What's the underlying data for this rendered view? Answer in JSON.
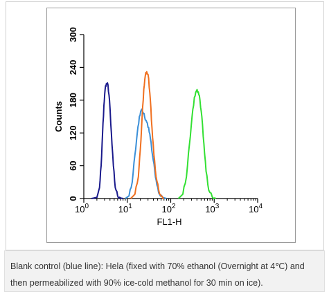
{
  "chart_data": {
    "type": "line",
    "xlabel": "FL1-H",
    "ylabel": "Counts",
    "x_scale": "log",
    "xlim": [
      1,
      10000
    ],
    "ylim": [
      0,
      300
    ],
    "x_ticks": [
      {
        "value": 1,
        "base": "10",
        "exp": "0"
      },
      {
        "value": 10,
        "base": "10",
        "exp": "1"
      },
      {
        "value": 100,
        "base": "10",
        "exp": "2"
      },
      {
        "value": 1000,
        "base": "10",
        "exp": "3"
      },
      {
        "value": 10000,
        "base": "10",
        "exp": "4"
      }
    ],
    "y_ticks": [
      "0",
      "60",
      "120",
      "180",
      "240",
      "300"
    ],
    "grid": false,
    "series": [
      {
        "color": "#1a1a8c",
        "points": [
          [
            1.5,
            0
          ],
          [
            2.0,
            2
          ],
          [
            2.3,
            20
          ],
          [
            2.5,
            60
          ],
          [
            2.7,
            120
          ],
          [
            2.9,
            170
          ],
          [
            3.1,
            200
          ],
          [
            3.3,
            210
          ],
          [
            3.6,
            208
          ],
          [
            3.9,
            180
          ],
          [
            4.3,
            120
          ],
          [
            4.8,
            60
          ],
          [
            5.3,
            20
          ],
          [
            6.0,
            5
          ],
          [
            7.0,
            1
          ],
          [
            8.0,
            0
          ]
        ]
      },
      {
        "color": "#3a8fd8",
        "points": [
          [
            9,
            0
          ],
          [
            11,
            5
          ],
          [
            13,
            30
          ],
          [
            15,
            80
          ],
          [
            17,
            120
          ],
          [
            19,
            150
          ],
          [
            21,
            162
          ],
          [
            23,
            158
          ],
          [
            25,
            150
          ],
          [
            28,
            140
          ],
          [
            31,
            130
          ],
          [
            34,
            110
          ],
          [
            38,
            80
          ],
          [
            43,
            50
          ],
          [
            48,
            25
          ],
          [
            55,
            8
          ],
          [
            65,
            2
          ],
          [
            80,
            0
          ]
        ]
      },
      {
        "color": "#f07020",
        "points": [
          [
            12,
            0
          ],
          [
            15,
            8
          ],
          [
            18,
            40
          ],
          [
            20,
            90
          ],
          [
            22,
            150
          ],
          [
            24,
            200
          ],
          [
            26,
            225
          ],
          [
            28,
            232
          ],
          [
            31,
            220
          ],
          [
            34,
            180
          ],
          [
            37,
            130
          ],
          [
            41,
            80
          ],
          [
            46,
            40
          ],
          [
            53,
            15
          ],
          [
            60,
            4
          ],
          [
            70,
            0
          ]
        ]
      },
      {
        "color": "#33e033",
        "points": [
          [
            150,
            0
          ],
          [
            190,
            8
          ],
          [
            230,
            40
          ],
          [
            270,
            100
          ],
          [
            310,
            150
          ],
          [
            350,
            185
          ],
          [
            390,
            197
          ],
          [
            430,
            195
          ],
          [
            470,
            180
          ],
          [
            520,
            150
          ],
          [
            580,
            100
          ],
          [
            650,
            50
          ],
          [
            750,
            15
          ],
          [
            900,
            3
          ],
          [
            1100,
            0
          ]
        ]
      }
    ]
  },
  "caption": {
    "line1": "Blank control (blue line): Hela (fixed with 70% ethanol (Overnight at 4℃) and",
    "line2": "then permeabilized with 90% ice-cold methanol for 30 min on ice)."
  }
}
